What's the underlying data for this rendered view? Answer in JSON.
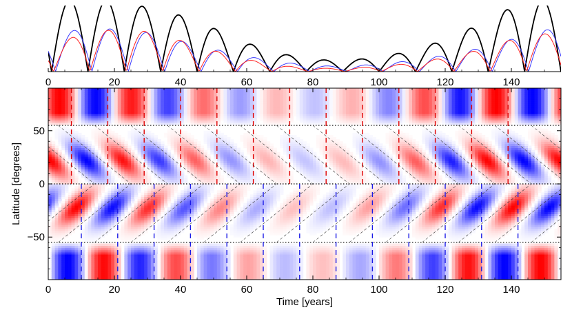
{
  "chart_data": [
    {
      "panel": "top",
      "type": "line",
      "description": "Cycle amplitude curves (black, blue, red)",
      "xlim": [
        0,
        155
      ],
      "ylim": [
        0,
        1.0
      ],
      "xticks": [
        0,
        20,
        40,
        60,
        80,
        100,
        120,
        140
      ],
      "series": [
        {
          "color": "#000000",
          "peak_times": [
            1,
            12,
            24,
            35,
            46,
            57,
            68,
            79,
            90,
            101,
            112,
            123,
            134,
            145
          ],
          "values": [
            1.0,
            1.0,
            1.0,
            0.85,
            0.75,
            0.48,
            0.3,
            0.18,
            0.15,
            0.2,
            0.3,
            0.48,
            0.72,
            1.0,
            1.0
          ]
        },
        {
          "color": "#3a3aff",
          "values": [
            0.55,
            0.7,
            0.67,
            0.6,
            0.42,
            0.3,
            0.18,
            0.11,
            0.08,
            0.12,
            0.18,
            0.28,
            0.4,
            0.58,
            0.72
          ]
        },
        {
          "color": "#ff2020",
          "values": [
            0.4,
            0.62,
            0.68,
            0.62,
            0.42,
            0.26,
            0.12,
            0.06,
            0.05,
            0.08,
            0.14,
            0.24,
            0.38,
            0.58,
            0.62
          ]
        }
      ]
    },
    {
      "panel": "bottom",
      "type": "heatmap",
      "description": "Butterfly diagram of field in time-latitude plane",
      "xlabel": "Time [years]",
      "ylabel": "Latitude [degrees]",
      "xlim": [
        0,
        155
      ],
      "ylim": [
        -90,
        90
      ],
      "xticks": [
        0,
        20,
        40,
        60,
        80,
        100,
        120,
        140
      ],
      "yticks": [
        -50,
        0,
        50
      ],
      "ytick_labels": [
        "−50",
        "0",
        "50"
      ],
      "colormap": {
        "positive": "#ff0000",
        "negative": "#0000ff",
        "zero": "#ffffff"
      },
      "boundary_latitudes": [
        55,
        0,
        -55
      ],
      "period_years": 22,
      "amplitude_profile": [
        0.95,
        0.95,
        0.9,
        0.75,
        0.6,
        0.4,
        0.28,
        0.22,
        0.25,
        0.4,
        0.6,
        0.85,
        0.95,
        0.95,
        0.95
      ],
      "red_dashed_times_north": [
        7,
        18,
        29,
        40,
        51,
        62,
        73,
        84,
        95,
        106,
        117,
        128,
        139
      ],
      "blue_dashed_times_south": [
        10,
        21,
        32,
        43,
        54,
        65,
        76,
        87,
        98,
        109,
        120,
        131,
        142
      ]
    }
  ]
}
